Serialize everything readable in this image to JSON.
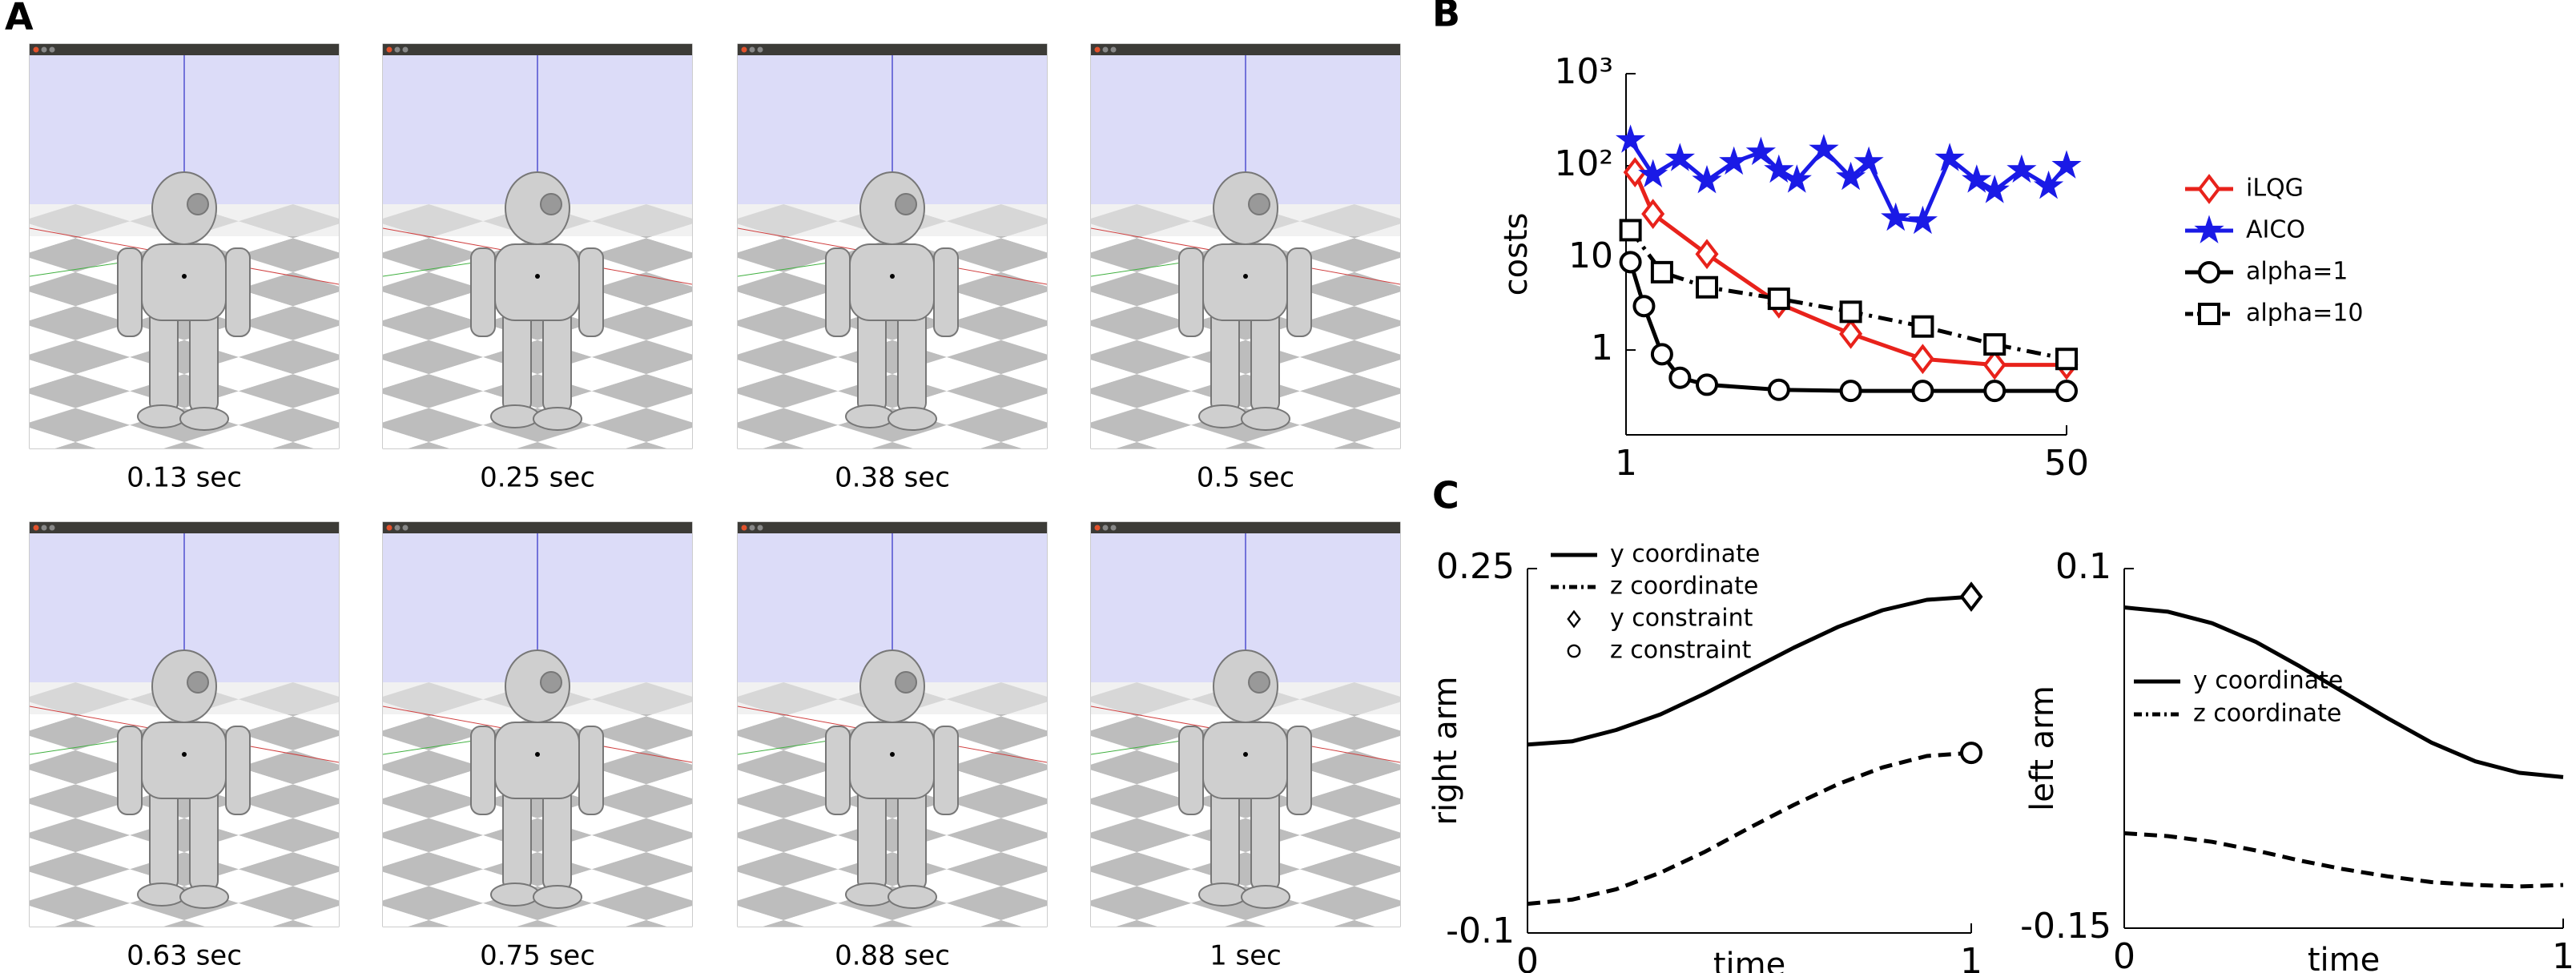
{
  "panel_labels": [
    "A",
    "B",
    "C"
  ],
  "frames": [
    {
      "caption": "0.13 sec"
    },
    {
      "caption": "0.25 sec"
    },
    {
      "caption": "0.38 sec"
    },
    {
      "caption": "0.5 sec"
    },
    {
      "caption": "0.63 sec"
    },
    {
      "caption": "0.75 sec"
    },
    {
      "caption": "0.88 sec"
    },
    {
      "caption": "1 sec"
    }
  ],
  "chart_data": [
    {
      "type": "line",
      "y_label": "costs",
      "log_y": true,
      "xlim": [
        1,
        50
      ],
      "xticks": [
        1,
        50
      ],
      "ylim": [
        0.12,
        1000
      ],
      "yticks": [
        1,
        10,
        {
          "value": 100,
          "label": "10²"
        },
        {
          "value": 1000,
          "label": "10³"
        }
      ],
      "series": [
        {
          "name": "iLQG",
          "color": "#e8221b",
          "dash": "solid",
          "marker": "diamond",
          "x": [
            2,
            4,
            10,
            18,
            26,
            34,
            42,
            50
          ],
          "values": [
            85,
            30,
            11,
            3.2,
            1.5,
            0.8,
            0.69,
            0.69
          ]
        },
        {
          "name": "AICO",
          "color": "#1a1ae6",
          "dash": "solid",
          "marker": "star",
          "x": [
            1.5,
            4,
            7,
            10,
            13,
            16,
            18,
            20,
            23,
            26,
            28,
            31,
            34,
            37,
            40,
            42,
            45,
            48,
            50
          ],
          "values": [
            190,
            80,
            120,
            69,
            110,
            140,
            90,
            70,
            150,
            75,
            110,
            27,
            25,
            120,
            70,
            54,
            90,
            60,
            100
          ]
        },
        {
          "name": "alpha=1",
          "color": "#000000",
          "dash": "solid",
          "marker": "circle",
          "x": [
            1.5,
            3,
            5,
            7,
            10,
            18,
            26,
            34,
            42,
            50
          ],
          "values": [
            9,
            3,
            0.9,
            0.5,
            0.42,
            0.37,
            0.36,
            0.36,
            0.36,
            0.36
          ]
        },
        {
          "name": "alpha=10",
          "color": "#000000",
          "dash": "dashdot",
          "marker": "square",
          "x": [
            1.5,
            5,
            10,
            18,
            26,
            34,
            42,
            50
          ],
          "values": [
            20,
            7,
            4.8,
            3.6,
            2.6,
            1.8,
            1.15,
            0.8
          ]
        }
      ]
    },
    {
      "type": "line",
      "x_label": "time",
      "y_label": "right arm",
      "xlim": [
        0,
        1
      ],
      "xticks": [
        0,
        1
      ],
      "ylim": [
        -0.1,
        0.25
      ],
      "yticks": [
        -0.1,
        0.25
      ],
      "x": [
        0,
        0.1,
        0.2,
        0.3,
        0.4,
        0.5,
        0.6,
        0.7,
        0.8,
        0.9,
        1
      ],
      "series": [
        {
          "name": "y coordinate",
          "color": "#000000",
          "dash": "solid",
          "marker": "none",
          "values": [
            0.081,
            0.084,
            0.095,
            0.11,
            0.13,
            0.152,
            0.174,
            0.194,
            0.21,
            0.22,
            0.223
          ]
        },
        {
          "name": "z coordinate",
          "color": "#000000",
          "dash": "dashed",
          "marker": "none",
          "values": [
            -0.072,
            -0.068,
            -0.058,
            -0.042,
            -0.022,
            0.001,
            0.023,
            0.043,
            0.059,
            0.07,
            0.073
          ]
        },
        {
          "name": "y constraint",
          "color": "#000000",
          "dash": "none",
          "marker": "diamond",
          "x": [
            1
          ],
          "values": [
            0.223
          ]
        },
        {
          "name": "z constraint",
          "color": "#000000",
          "dash": "none",
          "marker": "circle",
          "x": [
            1
          ],
          "values": [
            0.073
          ]
        }
      ]
    },
    {
      "type": "line",
      "x_label": "time",
      "y_label": "left arm",
      "xlim": [
        0,
        1
      ],
      "xticks": [
        0,
        1
      ],
      "ylim": [
        -0.15,
        0.1
      ],
      "yticks": [
        -0.15,
        0.1
      ],
      "x": [
        0,
        0.1,
        0.2,
        0.3,
        0.4,
        0.5,
        0.6,
        0.7,
        0.8,
        0.9,
        1
      ],
      "series": [
        {
          "name": "y coordinate",
          "color": "#000000",
          "dash": "solid",
          "marker": "none",
          "values": [
            0.073,
            0.07,
            0.062,
            0.049,
            0.032,
            0.014,
            -0.004,
            -0.021,
            -0.034,
            -0.042,
            -0.045
          ]
        },
        {
          "name": "z coordinate",
          "color": "#000000",
          "dash": "dashed",
          "marker": "none",
          "values": [
            -0.084,
            -0.086,
            -0.09,
            -0.096,
            -0.103,
            -0.109,
            -0.114,
            -0.118,
            -0.12,
            -0.121,
            -0.12
          ]
        }
      ]
    }
  ]
}
